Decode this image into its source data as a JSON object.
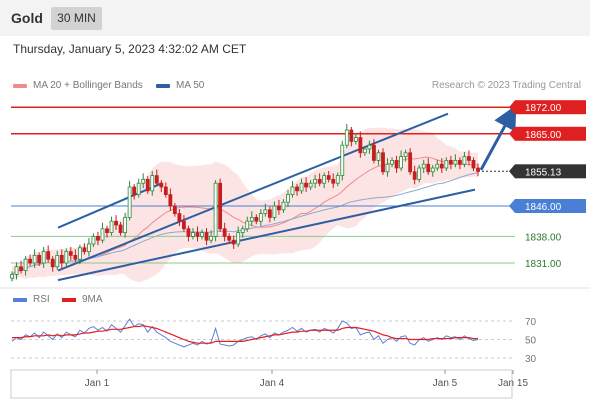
{
  "header": {
    "title": "Gold",
    "timeframe": "30 MIN"
  },
  "datetime": "Thursday, January 5, 2023 4:32:02 AM CET",
  "legend": [
    {
      "label": "MA 20 + Bollinger Bands",
      "color": "#f08a8a"
    },
    {
      "label": "MA 50",
      "color": "#2e5fa3"
    }
  ],
  "credit": "Research © 2023 Trading Central",
  "indicator_legend": [
    {
      "label": "RSI",
      "color": "#5b7fd6"
    },
    {
      "label": "9MA",
      "color": "#e02020"
    }
  ],
  "colors": {
    "up": "#2a8a3a",
    "down": "#c41e1e",
    "resistance": "#e02020",
    "support_blue": "#4a7fd6",
    "support_green": "#8cc98c",
    "channel": "#2e5fa3",
    "current": "#333333",
    "bollinger": "#fbd8d8"
  },
  "chart_data": [
    {
      "type": "candlestick",
      "series_names": [
        "MA 20 + Bollinger Bands",
        "MA 50"
      ],
      "ylim": [
        1826,
        1876
      ],
      "x_ticks": [
        "Jan 1",
        "Jan 4",
        "Jan 5",
        "Jan 15"
      ],
      "levels": [
        {
          "value": 1872.0,
          "label": "1872.00",
          "kind": "resistance"
        },
        {
          "value": 1865.0,
          "label": "1865.00",
          "kind": "resistance"
        },
        {
          "value": 1855.13,
          "label": "1855.13",
          "kind": "current"
        },
        {
          "value": 1846.0,
          "label": "1846.00",
          "kind": "pivot"
        },
        {
          "value": 1838.0,
          "label": "1838.00",
          "kind": "support"
        },
        {
          "value": 1831.0,
          "label": "1831.00",
          "kind": "support"
        }
      ],
      "close": [
        1828,
        1830,
        1829,
        1832,
        1831,
        1833,
        1831,
        1834,
        1832,
        1830,
        1833,
        1831,
        1834,
        1833,
        1832,
        1835,
        1834,
        1836,
        1838,
        1837,
        1840,
        1839,
        1842,
        1841,
        1839,
        1843,
        1851,
        1849,
        1852,
        1853,
        1850,
        1854,
        1852,
        1851,
        1849,
        1846,
        1844,
        1842,
        1840,
        1838,
        1839,
        1838,
        1839,
        1837,
        1838,
        1852,
        1840,
        1838,
        1837,
        1836,
        1839,
        1840,
        1842,
        1843,
        1842,
        1844,
        1845,
        1843,
        1846,
        1845,
        1847,
        1849,
        1851,
        1850,
        1852,
        1851,
        1852,
        1853,
        1852,
        1854,
        1853,
        1852,
        1854,
        1862,
        1866,
        1863,
        1864,
        1860,
        1861,
        1862,
        1858,
        1860,
        1855,
        1857,
        1858,
        1856,
        1859,
        1860,
        1855,
        1853,
        1856,
        1857,
        1855,
        1856,
        1857,
        1856,
        1858,
        1857,
        1858,
        1857,
        1859,
        1858,
        1856,
        1855.13
      ]
    },
    {
      "type": "line",
      "title": "RSI",
      "ylim": [
        30,
        70
      ],
      "y_ticks": [
        70,
        50,
        30
      ],
      "series": [
        {
          "name": "RSI",
          "values": [
            48,
            52,
            50,
            55,
            53,
            57,
            52,
            58,
            54,
            50,
            56,
            52,
            58,
            55,
            53,
            60,
            57,
            62,
            64,
            60,
            63,
            59,
            66,
            62,
            58,
            65,
            72,
            64,
            67,
            66,
            58,
            64,
            58,
            55,
            52,
            48,
            46,
            44,
            42,
            44,
            46,
            44,
            48,
            45,
            47,
            62,
            45,
            44,
            43,
            44,
            48,
            50,
            52,
            53,
            50,
            54,
            56,
            52,
            57,
            55,
            58,
            60,
            63,
            59,
            62,
            58,
            60,
            61,
            58,
            62,
            60,
            57,
            62,
            70,
            68,
            62,
            63,
            55,
            57,
            58,
            50,
            54,
            46,
            50,
            52,
            48,
            53,
            54,
            46,
            44,
            50,
            52,
            48,
            50,
            52,
            50,
            54,
            52,
            53,
            50,
            54,
            51,
            49,
            50
          ]
        },
        {
          "name": "9MA",
          "values": [
            52,
            52,
            52,
            53,
            53,
            54,
            54,
            54,
            55,
            54,
            55,
            54,
            55,
            55,
            55,
            56,
            57,
            57,
            58,
            59,
            59,
            60,
            61,
            61,
            61,
            62,
            63,
            64,
            64,
            65,
            64,
            63,
            62,
            60,
            58,
            56,
            54,
            52,
            50,
            48,
            47,
            46,
            46,
            46,
            46,
            48,
            48,
            48,
            48,
            48,
            48,
            48,
            49,
            50,
            51,
            52,
            53,
            54,
            55,
            55,
            56,
            57,
            58,
            58,
            59,
            59,
            60,
            60,
            60,
            60,
            60,
            60,
            60,
            62,
            63,
            63,
            63,
            62,
            61,
            60,
            59,
            57,
            55,
            54,
            52,
            51,
            51,
            51,
            50,
            50,
            50,
            50,
            50,
            51,
            51,
            51,
            51,
            51,
            52,
            52,
            52,
            52,
            51,
            51
          ]
        }
      ]
    }
  ]
}
